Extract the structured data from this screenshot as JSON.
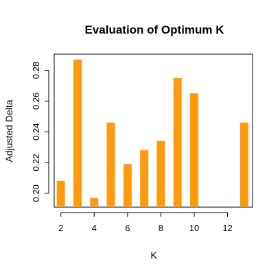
{
  "chart_data": {
    "type": "bar",
    "title": "Evaluation of Optimum K",
    "xlabel": "K",
    "ylabel": "Adjusted Delta",
    "x": [
      2,
      3,
      4,
      5,
      6,
      7,
      8,
      9,
      10,
      11,
      12,
      13
    ],
    "values": [
      0.208,
      0.287,
      0.197,
      0.246,
      0.219,
      0.228,
      0.234,
      0.275,
      0.265,
      0.191,
      0.191,
      0.246
    ],
    "xlim": [
      1.6,
      13.5
    ],
    "ylim": [
      0.191,
      0.2905
    ],
    "x_ticks": [
      2,
      4,
      6,
      8,
      10,
      12
    ],
    "x_tick_labels": [
      "2",
      "4",
      "6",
      "8",
      "10",
      "12"
    ],
    "y_ticks": [
      0.2,
      0.22,
      0.24,
      0.26,
      0.28
    ],
    "y_tick_labels": [
      "0.20",
      "0.22",
      "0.24",
      "0.26",
      "0.28"
    ],
    "bar_color": "#ff9a0e",
    "grid": false
  }
}
